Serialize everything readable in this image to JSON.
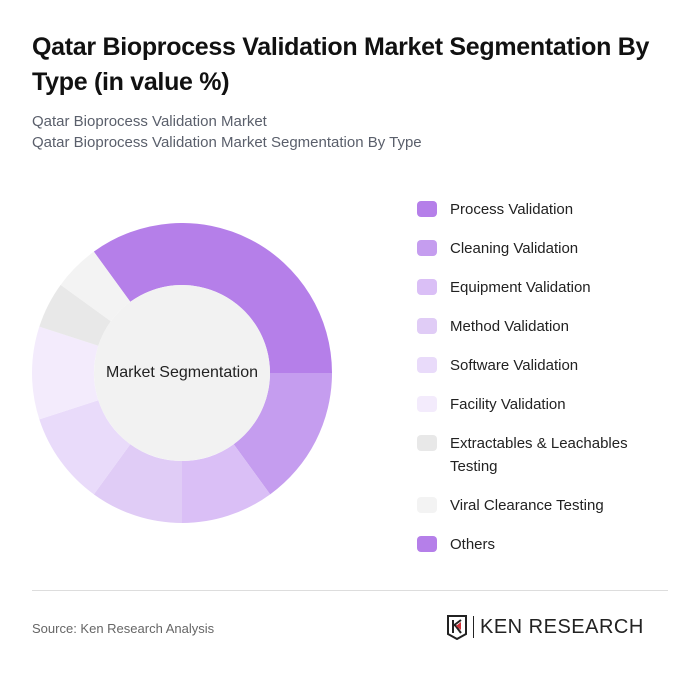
{
  "header": {
    "title": "Qatar Bioprocess Validation Market Segmentation By Type (in value %)",
    "subtitle1": "Qatar Bioprocess Validation Market",
    "subtitle2": "Qatar Bioprocess Validation Market Segmentation By Type"
  },
  "chart": {
    "center_label": "Market Segmentation"
  },
  "legend": [
    {
      "label": "Process Validation",
      "color": "#b57fe9"
    },
    {
      "label": "Cleaning Validation",
      "color": "#c59def"
    },
    {
      "label": "Equipment Validation",
      "color": "#dabff6"
    },
    {
      "label": "Method Validation",
      "color": "#e0ccf6"
    },
    {
      "label": "Software Validation",
      "color": "#e9dbfa"
    },
    {
      "label": "Facility Validation",
      "color": "#f3ebfc"
    },
    {
      "label": "Extractables & Leachables Testing",
      "color": "#e8e8e8"
    },
    {
      "label": "Viral Clearance Testing",
      "color": "#f3f3f3"
    },
    {
      "label": "Others",
      "color": "#b57fe9"
    }
  ],
  "footer": {
    "source": "Source: Ken Research Analysis",
    "logo_text": "KEN RESEARCH"
  },
  "chart_data": {
    "type": "pie",
    "title": "Qatar Bioprocess Validation Market Segmentation By Type (in value %)",
    "center_label": "Market Segmentation",
    "categories": [
      "Process Validation",
      "Cleaning Validation",
      "Equipment Validation",
      "Method Validation",
      "Software Validation",
      "Facility Validation",
      "Extractables & Leachables Testing",
      "Viral Clearance Testing",
      "Others"
    ],
    "values": [
      35,
      15,
      10,
      10,
      10,
      10,
      5,
      5,
      0
    ],
    "legend_position": "right"
  }
}
